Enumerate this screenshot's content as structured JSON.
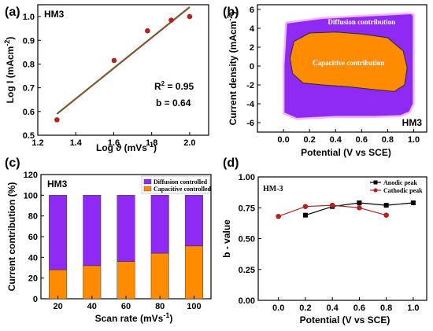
{
  "chart_data": [
    {
      "panel": "(a)",
      "type": "scatter",
      "sample_label": "HM3",
      "xlabel": "Log ϑ",
      "xlabel_unit": "(mVs",
      "xlabel_unit_sup": "-1",
      "xlabel_unit_close": ")",
      "ylabel": "Log I (mAcm",
      "ylabel_sup": "-2",
      "ylabel_close": ")",
      "xlim": [
        1.2,
        2.1
      ],
      "ylim": [
        0.5,
        1.05
      ],
      "xticks": [
        "1.2",
        "1.4",
        "1.6",
        "1.8",
        "2.0"
      ],
      "yticks": [
        "0.5",
        "0.6",
        "0.7",
        "0.8",
        "0.9",
        "1.0"
      ],
      "x": [
        1.301,
        1.602,
        1.778,
        1.903,
        2.0
      ],
      "y": [
        0.565,
        0.815,
        0.94,
        0.985,
        1.0
      ],
      "fit": {
        "x": [
          1.301,
          2.0
        ],
        "y": [
          0.59,
          1.04
        ]
      },
      "annotations": {
        "r2_base": "R",
        "r2_sup": "2",
        "r2_value": " = 0.95",
        "b": "b = 0.64"
      },
      "colors": {
        "point": "#b22222",
        "fit": "#2e7d32",
        "fit_highlight": "#d32f2f"
      }
    },
    {
      "panel": "(b)",
      "type": "area",
      "sample_label": "HM3",
      "xlabel": "Potential (V vs SCE)",
      "ylabel": "Current density (mAcm",
      "ylabel_sup": "-2",
      "ylabel_close": ")",
      "xlim": [
        -0.2,
        1.1
      ],
      "ylim": [
        -7,
        6.5
      ],
      "xticks": [
        "0.0",
        "0.2",
        "0.4",
        "0.6",
        "0.8",
        "1.0"
      ],
      "yticks": [
        "-6",
        "-4",
        "-2",
        "0",
        "2",
        "4",
        "6"
      ],
      "series": [
        {
          "name": "Diffusion contribution",
          "color": "#8f2af5",
          "x": [
            0.0,
            0.02,
            0.3,
            0.7,
            0.98,
            1.0,
            1.0,
            0.97,
            0.9,
            0.7,
            0.4,
            0.1,
            0.0
          ],
          "y": [
            0.0,
            4.6,
            5.1,
            5.4,
            5.6,
            5.4,
            -4.0,
            -4.9,
            -5.3,
            -5.4,
            -5.4,
            -5.6,
            -5.0
          ]
        },
        {
          "name": "Capacitive contribution",
          "color": "#ff8c00",
          "x": [
            0.05,
            0.08,
            0.2,
            0.4,
            0.6,
            0.8,
            0.92,
            0.95,
            0.93,
            0.85,
            0.7,
            0.5,
            0.3,
            0.15,
            0.07
          ],
          "y": [
            0.8,
            2.6,
            3.5,
            3.6,
            3.4,
            3.0,
            1.6,
            -0.2,
            -2.0,
            -2.7,
            -2.5,
            -2.2,
            -2.0,
            -1.8,
            -0.8
          ]
        }
      ]
    },
    {
      "panel": "(c)",
      "type": "bar",
      "sample_label": "HM3",
      "xlabel": "Scan rate",
      "xlabel_unit": "(mVs",
      "xlabel_unit_sup": "-1",
      "xlabel_unit_close": ")",
      "ylabel": "Current contribution (%)",
      "categories": [
        "20",
        "40",
        "60",
        "80",
        "100"
      ],
      "ylim": [
        0,
        120
      ],
      "yticks": [
        "0",
        "20",
        "40",
        "60",
        "80",
        "100",
        "120"
      ],
      "series": [
        {
          "name": "Capacitive controlled",
          "color": "#ff8c00",
          "values": [
            28,
            32,
            36,
            44,
            51
          ]
        },
        {
          "name": "Diffusion controlled",
          "color": "#8f2af5",
          "values": [
            72,
            68,
            64,
            56,
            49
          ]
        }
      ]
    },
    {
      "panel": "(d)",
      "type": "line",
      "sample_label": "HM-3",
      "xlabel": "Potential (V vs SCE)",
      "ylabel": "b - value",
      "xlim": [
        -0.15,
        1.1
      ],
      "ylim": [
        0.0,
        1.0
      ],
      "xticks": [
        "0.0",
        "0.2",
        "0.4",
        "0.6",
        "0.8",
        "1.0"
      ],
      "yticks": [
        "0.00",
        "0.25",
        "0.50",
        "0.75",
        "1.00"
      ],
      "series": [
        {
          "name": "Anodic peak",
          "color": "#000000",
          "marker": "square",
          "x": [
            0.2,
            0.4,
            0.6,
            0.8,
            1.0
          ],
          "y": [
            0.69,
            0.76,
            0.79,
            0.77,
            0.79
          ]
        },
        {
          "name": "Cathodic peak",
          "color": "#b22222",
          "marker": "circle",
          "x": [
            0.0,
            0.2,
            0.4,
            0.6,
            0.8
          ],
          "y": [
            0.68,
            0.76,
            0.77,
            0.75,
            0.69
          ]
        }
      ]
    }
  ]
}
